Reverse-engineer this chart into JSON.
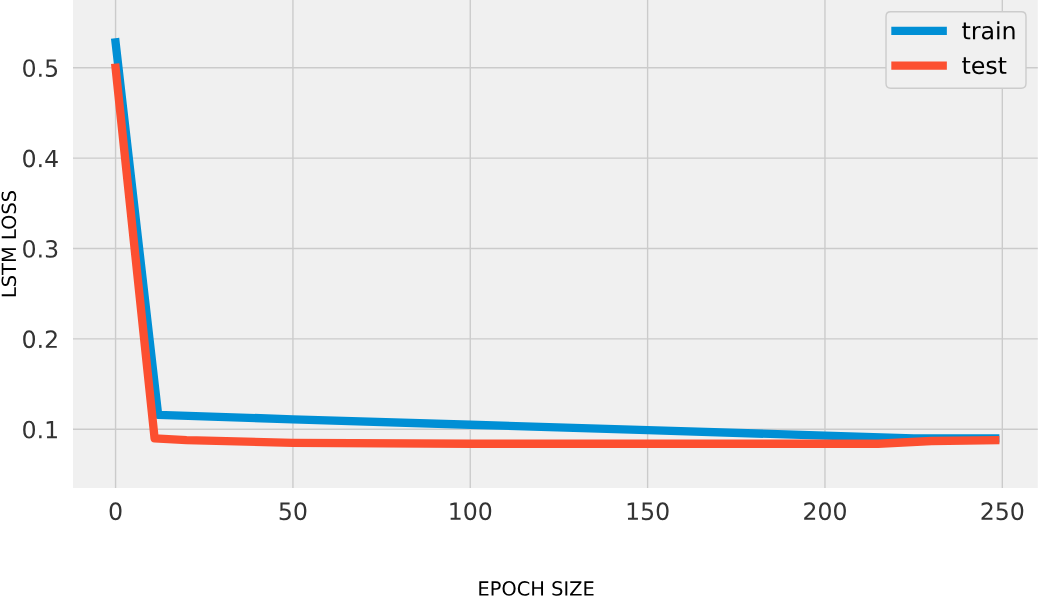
{
  "chart_data": {
    "type": "line",
    "xlabel": "EPOCH SIZE",
    "ylabel": "LSTM LOSS",
    "xlim": [
      -12,
      260
    ],
    "ylim": [
      0.035,
      0.575
    ],
    "xticks": [
      0,
      50,
      100,
      150,
      200,
      250
    ],
    "yticks": [
      0.1,
      0.2,
      0.3,
      0.4,
      0.5
    ],
    "grid": true,
    "legend": "top right",
    "line_style": "solid",
    "series": [
      {
        "name": "train",
        "color": "#008fd5",
        "x": [
          0,
          12,
          50,
          100,
          150,
          200,
          225,
          248
        ],
        "values": [
          0.528,
          0.116,
          0.111,
          0.105,
          0.099,
          0.093,
          0.09,
          0.09
        ]
      },
      {
        "name": "test",
        "color": "#fc4f30",
        "x": [
          0,
          11,
          20,
          50,
          100,
          150,
          215,
          230,
          248
        ],
        "values": [
          0.5,
          0.09,
          0.088,
          0.085,
          0.084,
          0.084,
          0.084,
          0.087,
          0.088
        ]
      }
    ]
  }
}
